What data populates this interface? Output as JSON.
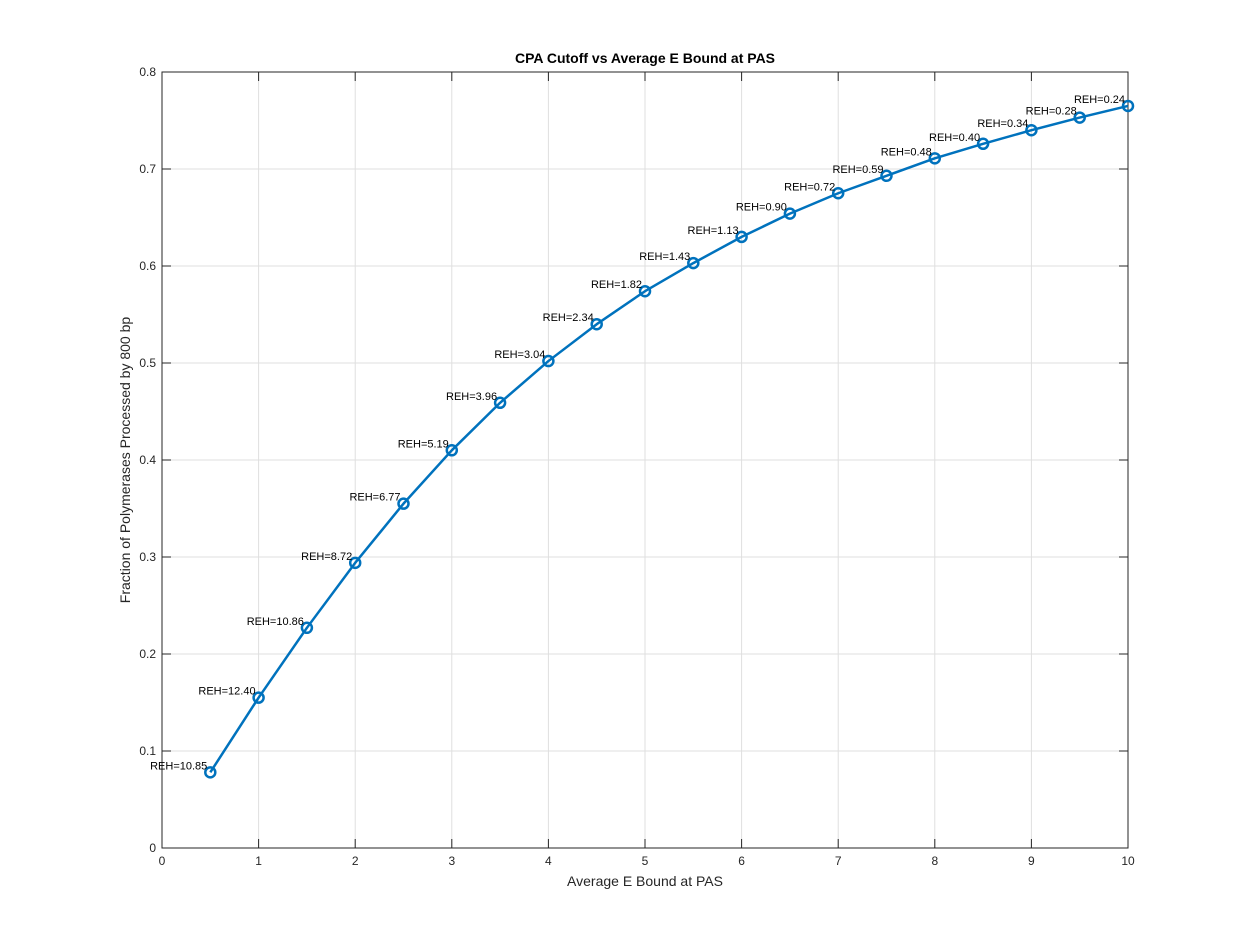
{
  "chart_data": {
    "type": "line",
    "title": "CPA Cutoff vs Average E Bound at PAS",
    "xlabel": "Average E Bound at PAS",
    "ylabel": "Fraction of Polymerases Processed by 800 bp",
    "xlim": [
      0,
      10
    ],
    "ylim": [
      0,
      0.8
    ],
    "xticks": [
      0,
      1,
      2,
      3,
      4,
      5,
      6,
      7,
      8,
      9,
      10
    ],
    "yticks": [
      0,
      0.1,
      0.2,
      0.3,
      0.4,
      0.5,
      0.6,
      0.7,
      0.8
    ],
    "xtick_labels": [
      "0",
      "1",
      "2",
      "3",
      "4",
      "5",
      "6",
      "7",
      "8",
      "9",
      "10"
    ],
    "ytick_labels": [
      "0",
      "0.1",
      "0.2",
      "0.3",
      "0.4",
      "0.5",
      "0.6",
      "0.7",
      "0.8"
    ],
    "grid": true,
    "series_color": "#0072BD",
    "x": [
      0.5,
      1,
      1.5,
      2,
      2.5,
      3,
      3.5,
      4,
      4.5,
      5,
      5.5,
      6,
      6.5,
      7,
      7.5,
      8,
      8.5,
      9,
      9.5,
      10
    ],
    "y": [
      0.078,
      0.155,
      0.227,
      0.294,
      0.355,
      0.41,
      0.459,
      0.502,
      0.54,
      0.574,
      0.603,
      0.63,
      0.654,
      0.675,
      0.693,
      0.711,
      0.726,
      0.74,
      0.753,
      0.765
    ],
    "point_labels": [
      "REH=10.85",
      "REH=12.40",
      "REH=10.86",
      "REH=8.72",
      "REH=6.77",
      "REH=5.19",
      "REH=3.96",
      "REH=3.04",
      "REH=2.34",
      "REH=1.82",
      "REH=1.43",
      "REH=1.13",
      "REH=0.90",
      "REH=0.72",
      "REH=0.59",
      "REH=0.48",
      "REH=0.40",
      "REH=0.34",
      "REH=0.28",
      "REH=0.24"
    ]
  }
}
